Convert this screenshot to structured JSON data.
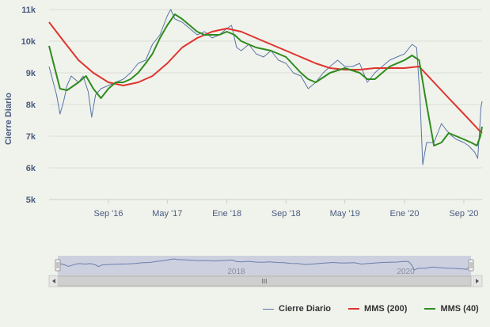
{
  "chart_data": {
    "type": "line",
    "ylabel": "Cierre Diario",
    "y_ticks": [
      "5k",
      "6k",
      "7k",
      "8k",
      "9k",
      "10k",
      "11k"
    ],
    "ylim": [
      5000,
      11000
    ],
    "x_ticks": [
      {
        "label": "Sep '16",
        "date": "2016-09-01"
      },
      {
        "label": "May '17",
        "date": "2017-05-01"
      },
      {
        "label": "Ene '18",
        "date": "2018-01-01"
      },
      {
        "label": "Sep '18",
        "date": "2018-09-01"
      },
      {
        "label": "May '19",
        "date": "2019-05-01"
      },
      {
        "label": "Ene '20",
        "date": "2020-01-01"
      },
      {
        "label": "Sep '20",
        "date": "2020-09-01"
      }
    ],
    "xlim": [
      "2016-01-01",
      "2020-11-15"
    ],
    "grid": {
      "x": false,
      "y": true
    },
    "legend": "bottom-right",
    "series": [
      {
        "name": "Cierre Diario",
        "color": "#5a73a8",
        "points": [
          [
            "2016-01-01",
            9200
          ],
          [
            "2016-02-01",
            8300
          ],
          [
            "2016-02-15",
            7700
          ],
          [
            "2016-03-01",
            8100
          ],
          [
            "2016-03-15",
            8600
          ],
          [
            "2016-04-01",
            8900
          ],
          [
            "2016-05-01",
            8700
          ],
          [
            "2016-05-20",
            8900
          ],
          [
            "2016-06-10",
            8400
          ],
          [
            "2016-06-24",
            7600
          ],
          [
            "2016-07-10",
            8300
          ],
          [
            "2016-08-01",
            8500
          ],
          [
            "2016-09-01",
            8600
          ],
          [
            "2016-10-01",
            8700
          ],
          [
            "2016-11-01",
            8800
          ],
          [
            "2016-12-01",
            9000
          ],
          [
            "2017-01-01",
            9300
          ],
          [
            "2017-02-01",
            9400
          ],
          [
            "2017-03-01",
            9900
          ],
          [
            "2017-04-01",
            10200
          ],
          [
            "2017-05-01",
            10800
          ],
          [
            "2017-05-15",
            11000
          ],
          [
            "2017-06-01",
            10700
          ],
          [
            "2017-07-01",
            10600
          ],
          [
            "2017-08-01",
            10400
          ],
          [
            "2017-09-01",
            10200
          ],
          [
            "2017-10-01",
            10300
          ],
          [
            "2017-11-01",
            10100
          ],
          [
            "2017-12-01",
            10200
          ],
          [
            "2018-01-01",
            10400
          ],
          [
            "2018-01-20",
            10500
          ],
          [
            "2018-02-10",
            9800
          ],
          [
            "2018-03-01",
            9700
          ],
          [
            "2018-04-01",
            9900
          ],
          [
            "2018-05-01",
            9600
          ],
          [
            "2018-06-01",
            9500
          ],
          [
            "2018-07-01",
            9700
          ],
          [
            "2018-08-01",
            9400
          ],
          [
            "2018-09-01",
            9300
          ],
          [
            "2018-10-01",
            9000
          ],
          [
            "2018-11-01",
            8900
          ],
          [
            "2018-12-01",
            8500
          ],
          [
            "2019-01-01",
            8700
          ],
          [
            "2019-02-01",
            9000
          ],
          [
            "2019-03-01",
            9200
          ],
          [
            "2019-04-01",
            9400
          ],
          [
            "2019-05-01",
            9200
          ],
          [
            "2019-06-01",
            9200
          ],
          [
            "2019-07-01",
            9300
          ],
          [
            "2019-08-01",
            8700
          ],
          [
            "2019-09-01",
            9000
          ],
          [
            "2019-10-01",
            9200
          ],
          [
            "2019-11-01",
            9400
          ],
          [
            "2019-12-01",
            9500
          ],
          [
            "2020-01-01",
            9600
          ],
          [
            "2020-02-01",
            9900
          ],
          [
            "2020-02-20",
            9800
          ],
          [
            "2020-03-05",
            8200
          ],
          [
            "2020-03-16",
            6100
          ],
          [
            "2020-04-01",
            6800
          ],
          [
            "2020-05-01",
            6800
          ],
          [
            "2020-06-01",
            7400
          ],
          [
            "2020-06-20",
            7200
          ],
          [
            "2020-07-15",
            7000
          ],
          [
            "2020-08-01",
            6900
          ],
          [
            "2020-09-01",
            6800
          ],
          [
            "2020-09-20",
            6700
          ],
          [
            "2020-10-15",
            6500
          ],
          [
            "2020-10-28",
            6300
          ],
          [
            "2020-11-05",
            7200
          ],
          [
            "2020-11-10",
            7900
          ],
          [
            "2020-11-15",
            8100
          ]
        ]
      },
      {
        "name": "MMS (200)",
        "color": "#e0332e",
        "points": [
          [
            "2016-01-01",
            10600
          ],
          [
            "2016-03-01",
            10000
          ],
          [
            "2016-05-01",
            9400
          ],
          [
            "2016-07-01",
            9000
          ],
          [
            "2016-09-01",
            8700
          ],
          [
            "2016-11-01",
            8600
          ],
          [
            "2017-01-01",
            8700
          ],
          [
            "2017-03-01",
            8900
          ],
          [
            "2017-05-01",
            9300
          ],
          [
            "2017-07-01",
            9800
          ],
          [
            "2017-09-01",
            10100
          ],
          [
            "2017-11-01",
            10300
          ],
          [
            "2018-01-01",
            10400
          ],
          [
            "2018-03-01",
            10300
          ],
          [
            "2018-05-01",
            10100
          ],
          [
            "2018-07-01",
            9900
          ],
          [
            "2018-09-01",
            9700
          ],
          [
            "2018-11-01",
            9500
          ],
          [
            "2019-01-01",
            9300
          ],
          [
            "2019-03-01",
            9150
          ],
          [
            "2019-05-01",
            9100
          ],
          [
            "2019-07-01",
            9100
          ],
          [
            "2019-09-01",
            9150
          ],
          [
            "2019-11-01",
            9150
          ],
          [
            "2020-01-01",
            9150
          ],
          [
            "2020-03-01",
            9200
          ],
          [
            "2020-05-01",
            8700
          ],
          [
            "2020-07-01",
            8200
          ],
          [
            "2020-09-01",
            7700
          ],
          [
            "2020-11-01",
            7200
          ],
          [
            "2020-11-15",
            7100
          ]
        ]
      },
      {
        "name": "MMS (40)",
        "color": "#2e8b1e",
        "points": [
          [
            "2016-01-01",
            9850
          ],
          [
            "2016-02-15",
            8500
          ],
          [
            "2016-03-15",
            8450
          ],
          [
            "2016-05-01",
            8700
          ],
          [
            "2016-06-01",
            8900
          ],
          [
            "2016-07-01",
            8500
          ],
          [
            "2016-08-01",
            8200
          ],
          [
            "2016-09-01",
            8500
          ],
          [
            "2016-10-01",
            8700
          ],
          [
            "2016-11-01",
            8700
          ],
          [
            "2016-12-01",
            8800
          ],
          [
            "2017-01-01",
            9000
          ],
          [
            "2017-02-01",
            9300
          ],
          [
            "2017-03-01",
            9600
          ],
          [
            "2017-04-01",
            10100
          ],
          [
            "2017-05-01",
            10500
          ],
          [
            "2017-06-01",
            10850
          ],
          [
            "2017-07-01",
            10700
          ],
          [
            "2017-08-01",
            10500
          ],
          [
            "2017-09-01",
            10300
          ],
          [
            "2017-10-01",
            10200
          ],
          [
            "2017-11-01",
            10200
          ],
          [
            "2017-12-01",
            10200
          ],
          [
            "2018-01-01",
            10300
          ],
          [
            "2018-02-01",
            10200
          ],
          [
            "2018-03-01",
            10000
          ],
          [
            "2018-05-01",
            9800
          ],
          [
            "2018-07-01",
            9700
          ],
          [
            "2018-09-01",
            9500
          ],
          [
            "2018-11-01",
            9000
          ],
          [
            "2018-12-01",
            8800
          ],
          [
            "2019-01-01",
            8700
          ],
          [
            "2019-03-01",
            9000
          ],
          [
            "2019-05-01",
            9150
          ],
          [
            "2019-07-01",
            9000
          ],
          [
            "2019-08-01",
            8800
          ],
          [
            "2019-09-01",
            8800
          ],
          [
            "2019-11-01",
            9200
          ],
          [
            "2020-01-01",
            9400
          ],
          [
            "2020-02-01",
            9550
          ],
          [
            "2020-03-01",
            9400
          ],
          [
            "2020-04-01",
            8000
          ],
          [
            "2020-05-01",
            6700
          ],
          [
            "2020-06-01",
            6800
          ],
          [
            "2020-07-01",
            7100
          ],
          [
            "2020-08-01",
            7000
          ],
          [
            "2020-09-01",
            6900
          ],
          [
            "2020-10-01",
            6800
          ],
          [
            "2020-10-25",
            6700
          ],
          [
            "2020-11-08",
            7000
          ],
          [
            "2020-11-15",
            7300
          ]
        ]
      }
    ]
  },
  "navigator": {
    "labels": [
      {
        "label": "2018",
        "date": "2018-01-01"
      },
      {
        "label": "2020",
        "date": "2020-01-01"
      }
    ],
    "scroll_grip": "III"
  },
  "colors": {
    "background": "#f0f3ec",
    "grid": "#d8ddd3",
    "navigator_mask": "#cdd0de"
  },
  "legend": {
    "items": [
      {
        "label": "Cierre Diario",
        "color": "#5a73a8"
      },
      {
        "label": "MMS (200)",
        "color": "#e0332e"
      },
      {
        "label": "MMS (40)",
        "color": "#2e8b1e"
      }
    ]
  }
}
